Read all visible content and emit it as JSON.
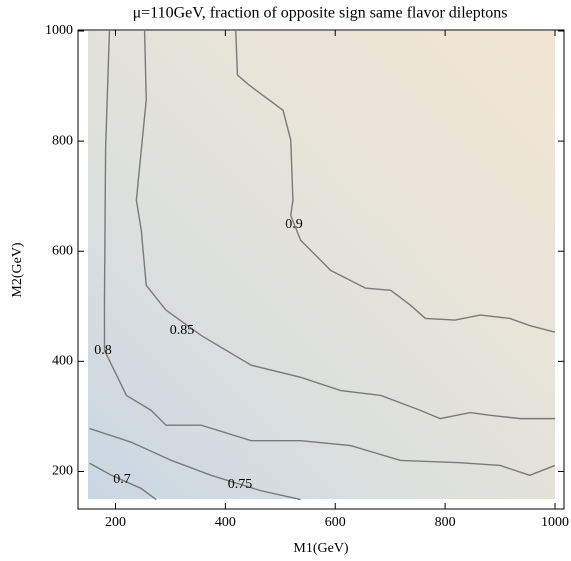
{
  "chart_data": {
    "type": "contour",
    "title": "μ=110GeV, fraction of opposite sign same flavor dileptons",
    "x_label": "M1(GeV)",
    "y_label": "M2(GeV)",
    "xlim": [
      150,
      1000
    ],
    "ylim": [
      150,
      1000
    ],
    "xticks": [
      200,
      400,
      600,
      800,
      1000
    ],
    "yticks": [
      200,
      400,
      600,
      800,
      1000
    ],
    "contours": [
      {
        "level": 0.7,
        "x": [
          153,
          193,
          247,
          274
        ],
        "y": [
          215,
          193,
          169,
          149
        ]
      },
      {
        "level": 0.75,
        "x": [
          153,
          229,
          302,
          374,
          465,
          537
        ],
        "y": [
          278,
          253,
          220,
          193,
          165,
          149
        ]
      },
      {
        "level": 0.8,
        "x": [
          189,
          182,
          180,
          180,
          220,
          265,
          292,
          356,
          447,
          537,
          628,
          719,
          827,
          900,
          954,
          1000
        ],
        "y": [
          1000,
          784,
          511,
          420,
          338,
          311,
          284,
          284,
          256,
          256,
          247,
          220,
          216,
          211,
          193,
          211
        ]
      },
      {
        "level": 0.85,
        "x": [
          253,
          256,
          247,
          238,
          247,
          256,
          292,
          356,
          447,
          537,
          610,
          683,
          755,
          791,
          846,
          882,
          937,
          1000
        ],
        "y": [
          1000,
          875,
          784,
          693,
          638,
          538,
          493,
          447,
          393,
          371,
          347,
          338,
          311,
          296,
          307,
          302,
          296,
          296
        ]
      },
      {
        "level": 0.9,
        "x": [
          419,
          422,
          443,
          505,
          519,
          523,
          519,
          537,
          592,
          655,
          701,
          737,
          764,
          818,
          864,
          918,
          954,
          1000
        ],
        "y": [
          1000,
          920,
          902,
          856,
          802,
          693,
          665,
          620,
          565,
          533,
          529,
          502,
          478,
          475,
          484,
          478,
          465,
          453
        ]
      }
    ]
  }
}
